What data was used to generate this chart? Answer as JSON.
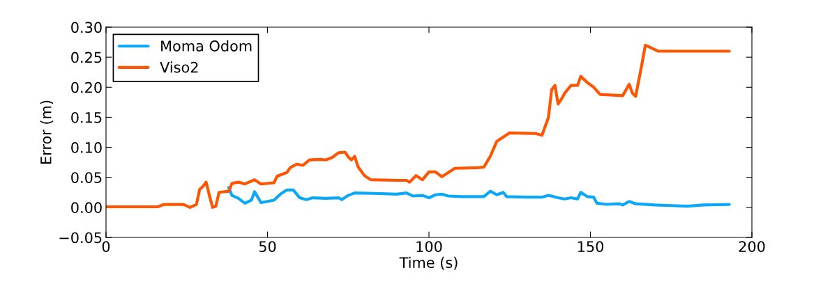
{
  "chart_data": {
    "type": "line",
    "xlabel": "Time (s)",
    "ylabel": "Error (m)",
    "xlim": [
      0,
      200
    ],
    "xticks": [
      0,
      50,
      100,
      150,
      200
    ],
    "ylim": [
      -0.05,
      0.3
    ],
    "yticks": [
      {
        "value": -0.05,
        "label": "−0.05"
      },
      {
        "value": 0.0,
        "label": "0.00"
      },
      {
        "value": 0.05,
        "label": "0.05"
      },
      {
        "value": 0.1,
        "label": "0.10"
      },
      {
        "value": 0.15,
        "label": "0.15"
      },
      {
        "value": 0.2,
        "label": "0.20"
      },
      {
        "value": 0.25,
        "label": "0.25"
      },
      {
        "value": 0.3,
        "label": "0.30"
      }
    ],
    "grid": false,
    "legend": "top left",
    "marker": "none",
    "line_style": "solid",
    "series": [
      {
        "name": "Moma Odom",
        "color": "#0aa8f6",
        "x": [
          38,
          39,
          41,
          43,
          45,
          46,
          48,
          52,
          54,
          56,
          58,
          60,
          62,
          64,
          68,
          72,
          73,
          75,
          77,
          85,
          90,
          93,
          95,
          98,
          100,
          102,
          104,
          106,
          110,
          117,
          119,
          121,
          123,
          124,
          130,
          135,
          137,
          140,
          142,
          144,
          146,
          147,
          149,
          151,
          152,
          155,
          159,
          160,
          162,
          164,
          170,
          175,
          180,
          185,
          193
        ],
        "values": [
          0.033,
          0.02,
          0.015,
          0.007,
          0.012,
          0.026,
          0.008,
          0.012,
          0.022,
          0.029,
          0.029,
          0.016,
          0.013,
          0.016,
          0.015,
          0.016,
          0.013,
          0.02,
          0.024,
          0.023,
          0.022,
          0.024,
          0.019,
          0.02,
          0.016,
          0.021,
          0.022,
          0.019,
          0.018,
          0.018,
          0.027,
          0.021,
          0.025,
          0.018,
          0.017,
          0.017,
          0.02,
          0.016,
          0.014,
          0.016,
          0.014,
          0.025,
          0.018,
          0.017,
          0.007,
          0.005,
          0.006,
          0.004,
          0.01,
          0.006,
          0.004,
          0.003,
          0.002,
          0.004,
          0.005
        ]
      },
      {
        "name": "Viso2",
        "color": "#ff5500",
        "x": [
          0,
          16,
          18,
          24,
          26,
          28,
          29,
          30,
          31,
          32,
          33,
          34,
          35,
          38,
          39,
          41,
          43,
          46,
          48,
          52,
          53,
          56,
          57,
          59,
          61,
          63,
          66,
          68,
          70,
          72,
          74,
          75,
          76,
          77,
          78,
          80,
          82,
          90,
          93,
          94,
          96,
          98,
          100,
          102,
          104,
          106,
          108,
          115,
          117,
          119,
          121,
          125,
          133,
          135,
          137,
          138,
          139,
          140,
          141,
          142,
          144,
          146,
          147,
          149,
          151,
          153,
          160,
          162,
          163,
          164,
          166,
          167,
          169,
          171,
          193
        ],
        "values": [
          0.001,
          0.001,
          0.005,
          0.005,
          0.0,
          0.005,
          0.03,
          0.035,
          0.042,
          0.02,
          0.0,
          0.002,
          0.025,
          0.027,
          0.04,
          0.042,
          0.039,
          0.046,
          0.039,
          0.041,
          0.052,
          0.058,
          0.066,
          0.072,
          0.07,
          0.079,
          0.08,
          0.079,
          0.083,
          0.091,
          0.092,
          0.084,
          0.079,
          0.085,
          0.068,
          0.053,
          0.046,
          0.045,
          0.045,
          0.042,
          0.053,
          0.046,
          0.059,
          0.059,
          0.051,
          0.058,
          0.065,
          0.066,
          0.067,
          0.085,
          0.11,
          0.124,
          0.123,
          0.12,
          0.15,
          0.196,
          0.203,
          0.172,
          0.18,
          0.19,
          0.203,
          0.203,
          0.218,
          0.208,
          0.2,
          0.188,
          0.186,
          0.205,
          0.19,
          0.185,
          0.24,
          0.27,
          0.265,
          0.26,
          0.26
        ]
      }
    ]
  }
}
